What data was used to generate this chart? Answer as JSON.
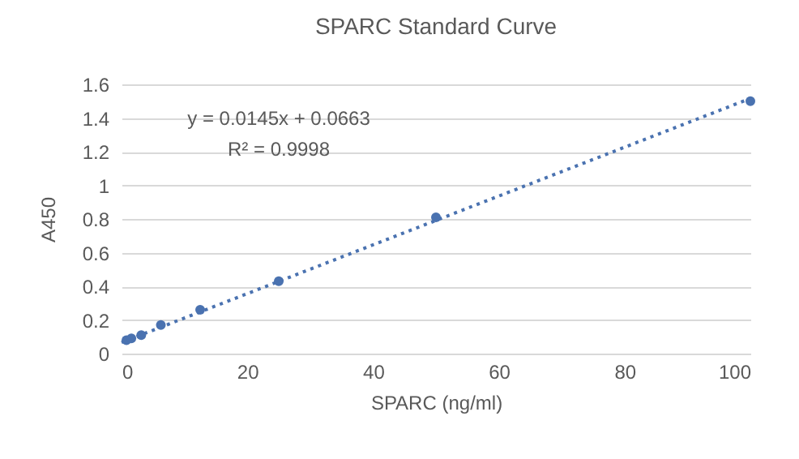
{
  "chart_data": {
    "type": "scatter",
    "title": "SPARC Standard Curve",
    "xlabel": "SPARC (ng/ml)",
    "ylabel": "A450",
    "xlim": [
      0,
      100
    ],
    "xticks": [
      0,
      20,
      40,
      60,
      80,
      100
    ],
    "ylim": [
      0,
      1.6
    ],
    "yticks": [
      0,
      0.2,
      0.4,
      0.6,
      0.8,
      1,
      1.2,
      1.4,
      1.6
    ],
    "grid": "y",
    "annotations": [
      "y = 0.0145x + 0.0663",
      "R² = 0.9998"
    ],
    "series": [
      {
        "color": "#4a72b0",
        "marker": "circle",
        "x": [
          0.78,
          1.56,
          3.13,
          6.25,
          12.5,
          25,
          50,
          100
        ],
        "values": [
          0.08,
          0.09,
          0.11,
          0.17,
          0.26,
          0.43,
          0.81,
          1.5
        ]
      },
      {
        "type": "line",
        "color": "#4a72b0",
        "line_style": "dotted",
        "x": [
          0,
          100
        ],
        "values": [
          0.0663,
          1.5163
        ]
      }
    ]
  }
}
